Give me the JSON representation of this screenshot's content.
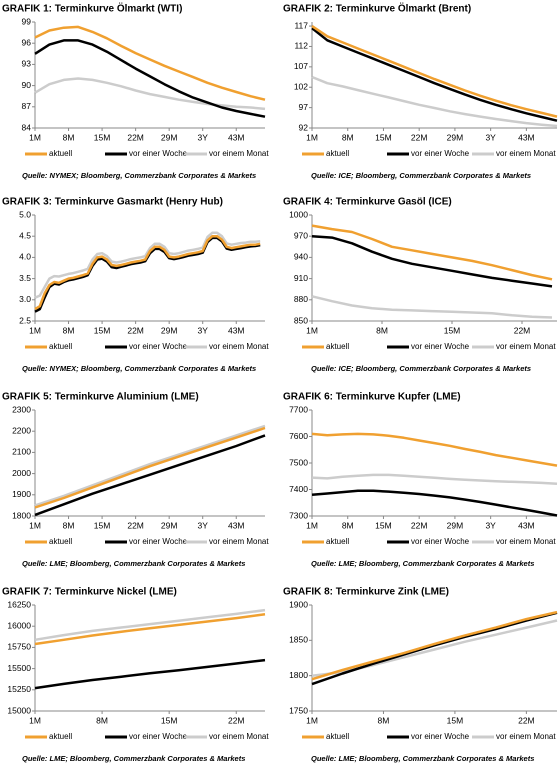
{
  "chart_data": [
    {
      "type": "line",
      "title": "GRAFIK 1: Terminkurve Ölmarkt (WTI)",
      "source": "Quelle: NYMEX; Bloomberg, Commerzbank Corporates & Markets",
      "x": [
        1,
        4,
        7,
        10,
        13,
        16,
        19,
        22,
        25,
        28,
        31,
        34,
        37,
        40,
        43,
        46,
        49
      ],
      "xlim": [
        1,
        49
      ],
      "xticks": [
        {
          "value": 1,
          "label": "1M"
        },
        {
          "value": 8,
          "label": "8M"
        },
        {
          "value": 15,
          "label": "15M"
        },
        {
          "value": 22,
          "label": "22M"
        },
        {
          "value": 29,
          "label": "29M"
        },
        {
          "value": 36,
          "label": "3Y"
        },
        {
          "value": 43,
          "label": "43M"
        }
      ],
      "ylim": [
        84,
        99
      ],
      "yticks": [
        84,
        87,
        90,
        93,
        96,
        99
      ],
      "series": [
        {
          "name": "aktuell",
          "color": "#f0a030",
          "values": [
            96.8,
            97.8,
            98.2,
            98.3,
            97.6,
            96.7,
            95.6,
            94.6,
            93.7,
            92.8,
            92.0,
            91.2,
            90.4,
            89.7,
            89.1,
            88.5,
            88.0
          ]
        },
        {
          "name": "vor einer Woche",
          "color": "#000000",
          "values": [
            94.5,
            95.8,
            96.4,
            96.4,
            95.8,
            94.8,
            93.6,
            92.4,
            91.3,
            90.2,
            89.2,
            88.3,
            87.6,
            86.9,
            86.4,
            86.0,
            85.6
          ]
        },
        {
          "name": "vor einem Monat",
          "color": "#cccccc",
          "values": [
            89.0,
            90.2,
            90.8,
            91.0,
            90.8,
            90.4,
            89.9,
            89.3,
            88.8,
            88.4,
            88.0,
            87.7,
            87.4,
            87.2,
            87.0,
            86.9,
            86.7
          ]
        }
      ]
    },
    {
      "type": "line",
      "title": "GRAFIK 2: Terminkurve Ölmarkt (Brent)",
      "source": "Quelle: ICE; Bloomberg, Commerzbank Corporates & Markets",
      "x": [
        1,
        4,
        7,
        10,
        13,
        16,
        19,
        22,
        25,
        28,
        31,
        34,
        37,
        40,
        43,
        46,
        49
      ],
      "xlim": [
        1,
        49
      ],
      "xticks": [
        {
          "value": 1,
          "label": "1M"
        },
        {
          "value": 8,
          "label": "8M"
        },
        {
          "value": 15,
          "label": "15M"
        },
        {
          "value": 22,
          "label": "22M"
        },
        {
          "value": 29,
          "label": "29M"
        },
        {
          "value": 36,
          "label": "3Y"
        },
        {
          "value": 43,
          "label": "43M"
        }
      ],
      "ylim": [
        92,
        118
      ],
      "yticks": [
        92,
        97,
        102,
        107,
        112,
        117
      ],
      "series": [
        {
          "name": "aktuell",
          "color": "#f0a030",
          "values": [
            117.0,
            114.5,
            113.0,
            111.5,
            110.0,
            108.5,
            107.0,
            105.5,
            104.0,
            102.6,
            101.2,
            99.9,
            98.7,
            97.6,
            96.6,
            95.7,
            94.8
          ]
        },
        {
          "name": "vor einer Woche",
          "color": "#000000",
          "values": [
            116.5,
            113.5,
            112.0,
            110.5,
            109.0,
            107.5,
            106.0,
            104.5,
            103.0,
            101.6,
            100.2,
            98.9,
            97.7,
            96.6,
            95.6,
            94.7,
            93.8
          ]
        },
        {
          "name": "vor einem Monat",
          "color": "#cccccc",
          "values": [
            104.5,
            103.0,
            102.2,
            101.3,
            100.4,
            99.5,
            98.6,
            97.7,
            96.9,
            96.1,
            95.4,
            94.8,
            94.2,
            93.7,
            93.2,
            92.8,
            92.5
          ]
        }
      ]
    },
    {
      "type": "line",
      "title": "GRAFIK 3: Terminkurve Gasmarkt (Henry Hub)",
      "source": "Quelle: NYMEX; Bloomberg, Commerzbank Corporates & Markets",
      "x": [
        1,
        2,
        3,
        4,
        5,
        6,
        7,
        8,
        9,
        10,
        11,
        12,
        13,
        14,
        15,
        16,
        17,
        18,
        19,
        20,
        21,
        22,
        23,
        24,
        25,
        26,
        27,
        28,
        29,
        30,
        31,
        32,
        33,
        34,
        35,
        36,
        37,
        38,
        39,
        40,
        41,
        42,
        43,
        44,
        45,
        46,
        47,
        48
      ],
      "xlim": [
        1,
        49
      ],
      "xticks": [
        {
          "value": 1,
          "label": "1M"
        },
        {
          "value": 8,
          "label": "8M"
        },
        {
          "value": 15,
          "label": "15M"
        },
        {
          "value": 22,
          "label": "22M"
        },
        {
          "value": 29,
          "label": "29M"
        },
        {
          "value": 36,
          "label": "3Y"
        },
        {
          "value": 43,
          "label": "43M"
        }
      ],
      "ylim": [
        2.5,
        5.0
      ],
      "yticks": [
        2.5,
        {
          "value": 3,
          "label": "3.0"
        },
        3.5,
        {
          "value": 4,
          "label": "4.0"
        },
        4.5,
        {
          "value": 5,
          "label": "5.0"
        }
      ],
      "series": [
        {
          "name": "aktuell",
          "color": "#f0a030",
          "values": [
            2.78,
            2.85,
            3.15,
            3.35,
            3.42,
            3.4,
            3.45,
            3.5,
            3.52,
            3.55,
            3.58,
            3.62,
            3.85,
            4.0,
            4.02,
            3.95,
            3.82,
            3.8,
            3.82,
            3.85,
            3.88,
            3.9,
            3.92,
            3.95,
            4.15,
            4.25,
            4.25,
            4.18,
            4.02,
            4.0,
            4.02,
            4.05,
            4.08,
            4.1,
            4.12,
            4.15,
            4.4,
            4.5,
            4.5,
            4.42,
            4.25,
            4.22,
            4.24,
            4.26,
            4.28,
            4.3,
            4.3,
            4.32
          ]
        },
        {
          "name": "vor einer Woche",
          "color": "#000000",
          "values": [
            2.72,
            2.78,
            3.05,
            3.3,
            3.38,
            3.36,
            3.42,
            3.46,
            3.48,
            3.51,
            3.54,
            3.58,
            3.8,
            3.95,
            3.97,
            3.9,
            3.77,
            3.75,
            3.78,
            3.81,
            3.84,
            3.86,
            3.88,
            3.91,
            4.1,
            4.2,
            4.2,
            4.13,
            3.98,
            3.96,
            3.98,
            4.01,
            4.04,
            4.06,
            4.08,
            4.11,
            4.36,
            4.46,
            4.46,
            4.38,
            4.21,
            4.18,
            4.2,
            4.22,
            4.24,
            4.26,
            4.27,
            4.29
          ]
        },
        {
          "name": "vor einem Monat",
          "color": "#cccccc",
          "values": [
            3.05,
            3.1,
            3.3,
            3.5,
            3.56,
            3.55,
            3.58,
            3.61,
            3.63,
            3.66,
            3.69,
            3.73,
            3.95,
            4.08,
            4.1,
            4.03,
            3.9,
            3.88,
            3.9,
            3.93,
            3.96,
            3.98,
            4.0,
            4.03,
            4.22,
            4.32,
            4.32,
            4.25,
            4.1,
            4.08,
            4.1,
            4.13,
            4.16,
            4.18,
            4.2,
            4.23,
            4.48,
            4.58,
            4.58,
            4.5,
            4.33,
            4.3,
            4.32,
            4.34,
            4.35,
            4.37,
            4.37,
            4.38
          ]
        }
      ]
    },
    {
      "type": "line",
      "title": "GRAFIK 4: Terminkurve Gasöl (ICE)",
      "source": "Quelle: ICE; Bloomberg, Commerzbank Corporates & Markets",
      "x": [
        1,
        3,
        5,
        7,
        9,
        11,
        13,
        15,
        17,
        19,
        21,
        23,
        25
      ],
      "xlim": [
        1,
        25.5
      ],
      "xticks": [
        {
          "value": 1,
          "label": "1M"
        },
        {
          "value": 8,
          "label": "8M"
        },
        {
          "value": 15,
          "label": "15M"
        },
        {
          "value": 22,
          "label": "22M"
        }
      ],
      "ylim": [
        850,
        1000
      ],
      "yticks": [
        850,
        880,
        910,
        940,
        970,
        1000
      ],
      "series": [
        {
          "name": "aktuell",
          "color": "#f0a030",
          "values": [
            985,
            980,
            976,
            966,
            955,
            950,
            945,
            940,
            935,
            929,
            922,
            915,
            909
          ]
        },
        {
          "name": "vor einer Woche",
          "color": "#000000",
          "values": [
            970,
            968,
            960,
            948,
            938,
            931,
            926,
            921,
            916,
            911,
            907,
            903,
            899
          ]
        },
        {
          "name": "vor einem Monat",
          "color": "#cccccc",
          "values": [
            885,
            878,
            872,
            868,
            866,
            865,
            864,
            863,
            862,
            861,
            858,
            856,
            855
          ]
        }
      ]
    },
    {
      "type": "line",
      "title": "GRAFIK 5: Terminkurve Aluminium (LME)",
      "source": "Quelle: LME; Bloomberg, Commerzbank Corporates & Markets",
      "x": [
        1,
        7,
        13,
        19,
        25,
        31,
        37,
        43,
        49
      ],
      "xlim": [
        1,
        49
      ],
      "xticks": [
        {
          "value": 1,
          "label": "1M"
        },
        {
          "value": 8,
          "label": "8M"
        },
        {
          "value": 15,
          "label": "15M"
        },
        {
          "value": 22,
          "label": "22M"
        },
        {
          "value": 29,
          "label": "29M"
        },
        {
          "value": 36,
          "label": "3Y"
        },
        {
          "value": 43,
          "label": "43M"
        }
      ],
      "ylim": [
        1800,
        2300
      ],
      "yticks": [
        1800,
        1900,
        2000,
        2100,
        2200,
        2300
      ],
      "series": [
        {
          "name": "aktuell",
          "color": "#f0a030",
          "values": [
            1840,
            1885,
            1935,
            1985,
            2035,
            2080,
            2125,
            2170,
            2215
          ]
        },
        {
          "name": "vor einer Woche",
          "color": "#000000",
          "values": [
            1805,
            1855,
            1905,
            1950,
            1995,
            2040,
            2085,
            2130,
            2180
          ]
        },
        {
          "name": "vor einem Monat",
          "color": "#cccccc",
          "values": [
            1850,
            1895,
            1945,
            1995,
            2045,
            2090,
            2135,
            2180,
            2225
          ]
        }
      ]
    },
    {
      "type": "line",
      "title": "GRAFIK 6: Terminkurve Kupfer (LME)",
      "source": "Quelle: LME; Bloomberg, Commerzbank Corporates & Markets",
      "x": [
        1,
        4,
        7,
        10,
        13,
        16,
        19,
        22,
        25,
        28,
        31,
        34,
        37,
        40,
        43,
        46,
        49
      ],
      "xlim": [
        1,
        49
      ],
      "xticks": [
        {
          "value": 1,
          "label": "1M"
        },
        {
          "value": 8,
          "label": "8M"
        },
        {
          "value": 15,
          "label": "15M"
        },
        {
          "value": 22,
          "label": "22M"
        },
        {
          "value": 29,
          "label": "29M"
        },
        {
          "value": 36,
          "label": "3Y"
        },
        {
          "value": 43,
          "label": "43M"
        }
      ],
      "ylim": [
        7300,
        7700
      ],
      "yticks": [
        7300,
        7400,
        7500,
        7600,
        7700
      ],
      "series": [
        {
          "name": "aktuell",
          "color": "#f0a030",
          "values": [
            7610,
            7605,
            7608,
            7610,
            7608,
            7603,
            7595,
            7585,
            7575,
            7565,
            7553,
            7542,
            7530,
            7520,
            7510,
            7500,
            7490
          ]
        },
        {
          "name": "vor einer Woche",
          "color": "#000000",
          "values": [
            7380,
            7385,
            7390,
            7395,
            7395,
            7392,
            7388,
            7383,
            7377,
            7370,
            7362,
            7353,
            7343,
            7333,
            7323,
            7313,
            7302
          ]
        },
        {
          "name": "vor einem Monat",
          "color": "#cccccc",
          "values": [
            7445,
            7442,
            7448,
            7452,
            7455,
            7455,
            7452,
            7448,
            7444,
            7440,
            7437,
            7434,
            7431,
            7429,
            7427,
            7425,
            7422
          ]
        }
      ]
    },
    {
      "type": "line",
      "title": "GRAFIK 7: Terminkurve Nickel (LME)",
      "source": "Quelle: LME; Bloomberg, Commerzbank Corporates & Markets",
      "x": [
        1,
        4,
        7,
        10,
        13,
        16,
        19,
        22,
        25
      ],
      "xlim": [
        1,
        25
      ],
      "xticks": [
        {
          "value": 1,
          "label": "1M"
        },
        {
          "value": 8,
          "label": "8M"
        },
        {
          "value": 15,
          "label": "15M"
        },
        {
          "value": 22,
          "label": "22M"
        }
      ],
      "ylim": [
        15000,
        16250
      ],
      "yticks": [
        15000,
        15250,
        15500,
        15750,
        16000,
        16250
      ],
      "series": [
        {
          "name": "aktuell",
          "color": "#f0a030",
          "values": [
            15790,
            15840,
            15890,
            15935,
            15975,
            16015,
            16055,
            16095,
            16140
          ]
        },
        {
          "name": "vor einer Woche",
          "color": "#000000",
          "values": [
            15270,
            15320,
            15365,
            15405,
            15445,
            15480,
            15520,
            15560,
            15600
          ]
        },
        {
          "name": "vor einem Monat",
          "color": "#cccccc",
          "values": [
            15840,
            15895,
            15945,
            15985,
            16025,
            16065,
            16105,
            16145,
            16190
          ]
        }
      ]
    },
    {
      "type": "line",
      "title": "GRAFIK 8: Terminkurve Zink (LME)",
      "source": "Quelle: LME; Bloomberg, Commerzbank Corporates & Markets",
      "x": [
        1,
        4,
        7,
        10,
        13,
        16,
        19,
        22,
        25
      ],
      "xlim": [
        1,
        25
      ],
      "xticks": [
        {
          "value": 1,
          "label": "1M"
        },
        {
          "value": 8,
          "label": "8M"
        },
        {
          "value": 15,
          "label": "15M"
        },
        {
          "value": 22,
          "label": "22M"
        }
      ],
      "ylim": [
        1750,
        1900
      ],
      "yticks": [
        1750,
        1800,
        1850,
        1900
      ],
      "series": [
        {
          "name": "aktuell",
          "color": "#f0a030",
          "values": [
            1795,
            1808,
            1820,
            1832,
            1845,
            1857,
            1868,
            1880,
            1890
          ]
        },
        {
          "name": "vor einer Woche",
          "color": "#000000",
          "values": [
            1788,
            1803,
            1817,
            1830,
            1843,
            1855,
            1866,
            1878,
            1889
          ]
        },
        {
          "name": "vor einem Monat",
          "color": "#cccccc",
          "values": [
            1800,
            1805,
            1815,
            1826,
            1837,
            1848,
            1858,
            1868,
            1878
          ]
        }
      ]
    }
  ]
}
